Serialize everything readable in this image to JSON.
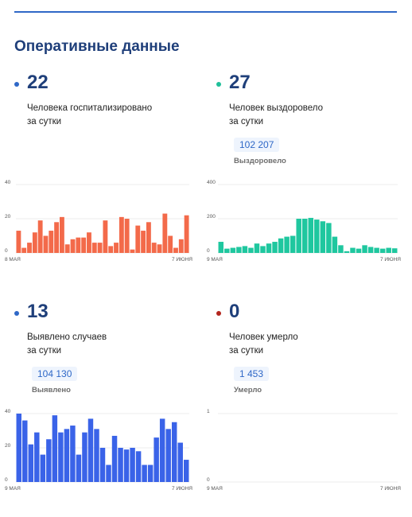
{
  "section_title": "Оперативные данные",
  "cards": [
    {
      "value": "22",
      "description_line1": "Человека госпитализировано",
      "description_line2": "за сутки",
      "total": "",
      "total_label": "",
      "dot_color": "#2f68c7",
      "bar_color": "#f36a4a"
    },
    {
      "value": "27",
      "description_line1": "Человек выздоровело",
      "description_line2": "за сутки",
      "total": "102 207",
      "total_label": "Выздоровело",
      "dot_color": "#1fbf9a",
      "bar_color": "#1fc79f"
    },
    {
      "value": "13",
      "description_line1": "Выявлено случаев",
      "description_line2": "за сутки",
      "total": "104 130",
      "total_label": "Выявлено",
      "dot_color": "#2f68c7",
      "bar_color": "#3a63e8"
    },
    {
      "value": "0",
      "description_line1": "Человек умерло",
      "description_line2": "за сутки",
      "total": "1 453",
      "total_label": "Умерло",
      "dot_color": "#b3261e",
      "bar_color": "#888888"
    }
  ],
  "chart_data": [
    {
      "type": "bar",
      "x_start_label": "8 МАЯ",
      "x_end_label": "7 ИЮНЯ",
      "yticks": [
        0,
        20,
        40
      ],
      "ylim": [
        0,
        40
      ],
      "values": [
        13,
        3,
        6,
        12,
        19,
        10,
        13,
        18,
        21,
        5,
        8,
        9,
        9,
        12,
        6,
        6,
        19,
        4,
        6,
        21,
        20,
        2,
        16,
        13,
        18,
        6,
        5,
        23,
        10,
        3,
        8,
        22
      ]
    },
    {
      "type": "bar",
      "x_start_label": "9 МАЯ",
      "x_end_label": "7 ИЮНЯ",
      "yticks": [
        0,
        200,
        400
      ],
      "ylim": [
        0,
        400
      ],
      "values": [
        65,
        25,
        30,
        35,
        40,
        30,
        55,
        40,
        55,
        65,
        85,
        95,
        100,
        200,
        200,
        205,
        195,
        185,
        175,
        95,
        45,
        10,
        30,
        25,
        45,
        35,
        30,
        25,
        30,
        27
      ]
    },
    {
      "type": "bar",
      "x_start_label": "9 МАЯ",
      "x_end_label": "7 ИЮНЯ",
      "yticks": [
        0,
        20,
        40
      ],
      "ylim": [
        0,
        40
      ],
      "values": [
        40,
        36,
        22,
        29,
        16,
        25,
        39,
        29,
        31,
        33,
        16,
        29,
        37,
        31,
        20,
        10,
        27,
        20,
        19,
        20,
        18,
        10,
        10,
        26,
        37,
        31,
        35,
        23,
        13
      ]
    },
    {
      "type": "bar",
      "x_start_label": "9 МАЯ",
      "x_end_label": "7 ИЮНЯ",
      "yticks": [
        0,
        1
      ],
      "ylim": [
        0,
        1
      ],
      "values": [
        0,
        0,
        0,
        0,
        0,
        0,
        0,
        0,
        0,
        0,
        0,
        0,
        0,
        0,
        0,
        0,
        0,
        0,
        0,
        0,
        0,
        0,
        0,
        0,
        0,
        0,
        0,
        0,
        0,
        0
      ]
    }
  ]
}
